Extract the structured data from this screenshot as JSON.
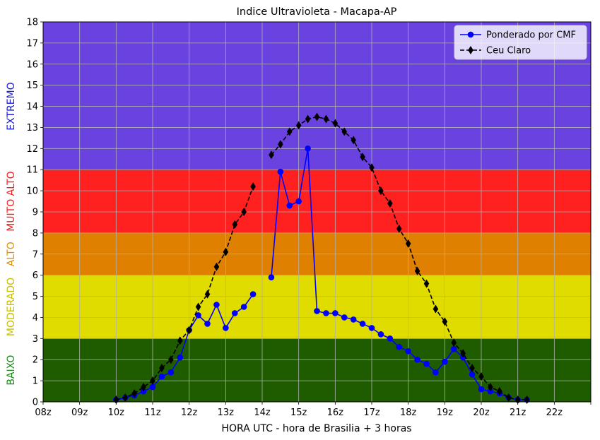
{
  "chart_data": {
    "type": "line",
    "title": "Indice Ultravioleta - Macapa-AP",
    "xlabel": "HORA UTC - hora de Brasilia + 3 horas",
    "ylabel": "",
    "xlim": [
      8,
      23
    ],
    "ylim": [
      0,
      18
    ],
    "xticks": [
      8,
      9,
      10,
      11,
      12,
      13,
      14,
      15,
      16,
      17,
      18,
      19,
      20,
      21,
      22,
      23
    ],
    "xtick_labels": [
      "08z",
      "09z",
      "10z",
      "11z",
      "12z",
      "13z",
      "14z",
      "15z",
      "16z",
      "17z",
      "18z",
      "19z",
      "20z",
      "21z",
      "22z",
      ""
    ],
    "yticks": [
      0,
      1,
      2,
      3,
      4,
      5,
      6,
      7,
      8,
      9,
      10,
      11,
      12,
      13,
      14,
      15,
      16,
      17,
      18
    ],
    "grid": true,
    "legend_position": "top-right",
    "bands": [
      {
        "label": "BAIXO",
        "from": 0,
        "to": 3,
        "color": "#1f5c00",
        "label_color": "#1a8a1a"
      },
      {
        "label": "MODERADO",
        "from": 3,
        "to": 6,
        "color": "#e0dc00",
        "label_color": "#c8c000"
      },
      {
        "label": "ALTO",
        "from": 6,
        "to": 8,
        "color": "#e08000",
        "label_color": "#e09000"
      },
      {
        "label": "MUITO ALTO",
        "from": 8,
        "to": 11,
        "color": "#ff2020",
        "label_color": "#ff1a1a"
      },
      {
        "label": "EXTREMO",
        "from": 11,
        "to": 18,
        "color": "#6a42e0",
        "label_color": "#1a1ae0"
      }
    ],
    "series": [
      {
        "name": "Ponderado por CMF",
        "color": "#0000ff",
        "marker": "circle",
        "line": "solid",
        "segments": [
          {
            "x": [
              10.0,
              10.25,
              10.5,
              10.75,
              11.0,
              11.25,
              11.5,
              11.75,
              12.0,
              12.25,
              12.5,
              12.75,
              13.0,
              13.25,
              13.5,
              13.75
            ],
            "y": [
              0.1,
              0.2,
              0.3,
              0.5,
              0.7,
              1.2,
              1.4,
              2.1,
              3.4,
              4.1,
              3.7,
              4.6,
              3.5,
              4.2,
              4.5,
              5.1
            ]
          },
          {
            "x": [
              14.25,
              14.5,
              14.75,
              15.0,
              15.25,
              15.5,
              15.75,
              16.0,
              16.25,
              16.5,
              16.75,
              17.0,
              17.25,
              17.5,
              17.75,
              18.0,
              18.25,
              18.5,
              18.75,
              19.0,
              19.25,
              19.5,
              19.75,
              20.0,
              20.25,
              20.5,
              20.75,
              21.0,
              21.25
            ],
            "y": [
              5.9,
              10.9,
              9.3,
              9.5,
              12.0,
              4.3,
              4.2,
              4.2,
              4.0,
              3.9,
              3.7,
              3.5,
              3.2,
              3.0,
              2.6,
              2.4,
              2.0,
              1.8,
              1.4,
              1.9,
              2.5,
              2.1,
              1.3,
              0.6,
              0.5,
              0.4,
              0.2,
              0.1,
              0.1
            ]
          }
        ]
      },
      {
        "name": "Ceu Claro",
        "color": "#000000",
        "marker": "diamond",
        "line": "dashed",
        "segments": [
          {
            "x": [
              10.0,
              10.25,
              10.5,
              10.75,
              11.0,
              11.25,
              11.5,
              11.75,
              12.0,
              12.25,
              12.5,
              12.75,
              13.0,
              13.25,
              13.5,
              13.75
            ],
            "y": [
              0.1,
              0.2,
              0.4,
              0.7,
              1.0,
              1.6,
              2.0,
              2.9,
              3.4,
              4.5,
              5.1,
              6.4,
              7.1,
              8.4,
              9.0,
              10.2
            ]
          },
          {
            "x": [
              14.25,
              14.5,
              14.75,
              15.0,
              15.25,
              15.5,
              15.75,
              16.0,
              16.25,
              16.5,
              16.75,
              17.0,
              17.25,
              17.5,
              17.75,
              18.0,
              18.25,
              18.5,
              18.75,
              19.0,
              19.25,
              19.5,
              19.75,
              20.0,
              20.25,
              20.5,
              20.75,
              21.0,
              21.25
            ],
            "y": [
              11.7,
              12.2,
              12.8,
              13.1,
              13.4,
              13.5,
              13.4,
              13.2,
              12.8,
              12.4,
              11.6,
              11.1,
              10.0,
              9.4,
              8.2,
              7.5,
              6.2,
              5.6,
              4.4,
              3.8,
              2.8,
              2.3,
              1.6,
              1.2,
              0.7,
              0.5,
              0.2,
              0.1,
              0.1
            ]
          }
        ]
      }
    ]
  }
}
